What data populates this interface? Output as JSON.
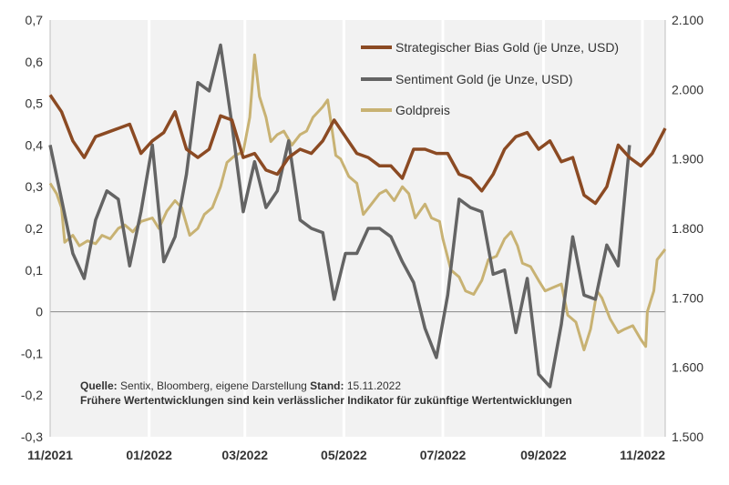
{
  "chart_data": {
    "type": "line",
    "x_ticks": [
      "11/2021",
      "01/2022",
      "03/2022",
      "05/2022",
      "07/2022",
      "09/2022",
      "11/2022"
    ],
    "x_range": [
      "2021-11-01",
      "2022-11-15"
    ],
    "y_left": {
      "range": [
        -0.3,
        0.7
      ],
      "ticks": [
        "0,7",
        "0,6",
        "0,5",
        "0,4",
        "0,3",
        "0,2",
        "0,1",
        "0",
        "-0,1",
        "-0,2",
        "-0,3"
      ]
    },
    "y_right": {
      "range": [
        1500,
        2100
      ],
      "ticks": [
        "2.100",
        "2.000",
        "1.900",
        "1.800",
        "1.700",
        "1.600",
        "1.500"
      ]
    },
    "grid": false,
    "legend_position": "top-right",
    "series": [
      {
        "name": "Strategischer Bias Gold (je Unze, USD)",
        "axis": "left",
        "color": "#8B4A23",
        "points": [
          [
            "2021-11-01",
            0.52
          ],
          [
            "2021-11-08",
            0.48
          ],
          [
            "2021-11-15",
            0.41
          ],
          [
            "2021-11-22",
            0.37
          ],
          [
            "2021-11-29",
            0.42
          ],
          [
            "2021-12-06",
            0.43
          ],
          [
            "2021-12-13",
            0.44
          ],
          [
            "2021-12-20",
            0.45
          ],
          [
            "2021-12-27",
            0.38
          ],
          [
            "2022-01-03",
            0.41
          ],
          [
            "2022-01-10",
            0.43
          ],
          [
            "2022-01-17",
            0.48
          ],
          [
            "2022-01-24",
            0.39
          ],
          [
            "2022-01-31",
            0.37
          ],
          [
            "2022-02-07",
            0.39
          ],
          [
            "2022-02-14",
            0.47
          ],
          [
            "2022-02-21",
            0.46
          ],
          [
            "2022-02-28",
            0.37
          ],
          [
            "2022-03-07",
            0.38
          ],
          [
            "2022-03-14",
            0.34
          ],
          [
            "2022-03-21",
            0.33
          ],
          [
            "2022-03-28",
            0.37
          ],
          [
            "2022-04-04",
            0.39
          ],
          [
            "2022-04-11",
            0.38
          ],
          [
            "2022-04-18",
            0.41
          ],
          [
            "2022-04-25",
            0.46
          ],
          [
            "2022-05-02",
            0.42
          ],
          [
            "2022-05-09",
            0.38
          ],
          [
            "2022-05-16",
            0.37
          ],
          [
            "2022-05-23",
            0.35
          ],
          [
            "2022-05-30",
            0.35
          ],
          [
            "2022-06-06",
            0.32
          ],
          [
            "2022-06-13",
            0.39
          ],
          [
            "2022-06-20",
            0.39
          ],
          [
            "2022-06-27",
            0.38
          ],
          [
            "2022-07-04",
            0.38
          ],
          [
            "2022-07-11",
            0.33
          ],
          [
            "2022-07-18",
            0.32
          ],
          [
            "2022-07-25",
            0.29
          ],
          [
            "2022-08-01",
            0.33
          ],
          [
            "2022-08-08",
            0.39
          ],
          [
            "2022-08-15",
            0.42
          ],
          [
            "2022-08-22",
            0.43
          ],
          [
            "2022-08-29",
            0.39
          ],
          [
            "2022-09-05",
            0.41
          ],
          [
            "2022-09-12",
            0.36
          ],
          [
            "2022-09-19",
            0.37
          ],
          [
            "2022-09-26",
            0.28
          ],
          [
            "2022-10-03",
            0.26
          ],
          [
            "2022-10-10",
            0.3
          ],
          [
            "2022-10-17",
            0.4
          ],
          [
            "2022-10-24",
            0.37
          ],
          [
            "2022-10-31",
            0.35
          ],
          [
            "2022-11-07",
            0.38
          ],
          [
            "2022-11-15",
            0.44
          ]
        ]
      },
      {
        "name": "Sentiment Gold (je Unze, USD)",
        "axis": "left",
        "color": "#646464",
        "points": [
          [
            "2021-11-01",
            0.4
          ],
          [
            "2021-11-08",
            0.27
          ],
          [
            "2021-11-15",
            0.14
          ],
          [
            "2021-11-22",
            0.08
          ],
          [
            "2021-11-29",
            0.22
          ],
          [
            "2021-12-06",
            0.29
          ],
          [
            "2021-12-13",
            0.27
          ],
          [
            "2021-12-20",
            0.11
          ],
          [
            "2021-12-27",
            0.24
          ],
          [
            "2022-01-03",
            0.4
          ],
          [
            "2022-01-10",
            0.12
          ],
          [
            "2022-01-17",
            0.18
          ],
          [
            "2022-01-24",
            0.33
          ],
          [
            "2022-01-31",
            0.55
          ],
          [
            "2022-02-07",
            0.53
          ],
          [
            "2022-02-14",
            0.64
          ],
          [
            "2022-02-21",
            0.45
          ],
          [
            "2022-02-28",
            0.24
          ],
          [
            "2022-03-07",
            0.36
          ],
          [
            "2022-03-14",
            0.25
          ],
          [
            "2022-03-21",
            0.29
          ],
          [
            "2022-03-28",
            0.41
          ],
          [
            "2022-04-04",
            0.22
          ],
          [
            "2022-04-11",
            0.2
          ],
          [
            "2022-04-18",
            0.19
          ],
          [
            "2022-04-25",
            0.03
          ],
          [
            "2022-05-02",
            0.14
          ],
          [
            "2022-05-09",
            0.14
          ],
          [
            "2022-05-16",
            0.2
          ],
          [
            "2022-05-23",
            0.2
          ],
          [
            "2022-05-30",
            0.18
          ],
          [
            "2022-06-06",
            0.12
          ],
          [
            "2022-06-13",
            0.07
          ],
          [
            "2022-06-20",
            -0.04
          ],
          [
            "2022-06-27",
            -0.11
          ],
          [
            "2022-07-04",
            0.04
          ],
          [
            "2022-07-11",
            0.27
          ],
          [
            "2022-07-18",
            0.25
          ],
          [
            "2022-07-25",
            0.24
          ],
          [
            "2022-08-01",
            0.09
          ],
          [
            "2022-08-08",
            0.1
          ],
          [
            "2022-08-15",
            -0.05
          ],
          [
            "2022-08-22",
            0.08
          ],
          [
            "2022-08-29",
            -0.15
          ],
          [
            "2022-09-05",
            -0.18
          ],
          [
            "2022-09-12",
            -0.03
          ],
          [
            "2022-09-19",
            0.18
          ],
          [
            "2022-09-26",
            0.04
          ],
          [
            "2022-10-03",
            0.03
          ],
          [
            "2022-10-10",
            0.16
          ],
          [
            "2022-10-17",
            0.11
          ],
          [
            "2022-10-24",
            0.4
          ]
        ]
      },
      {
        "name": "Goldpreis",
        "axis": "right",
        "color": "#C8B273",
        "points": [
          [
            "2021-11-01",
            1865
          ],
          [
            "2021-11-05",
            1850
          ],
          [
            "2021-11-08",
            1830
          ],
          [
            "2021-11-10",
            1780
          ],
          [
            "2021-11-15",
            1790
          ],
          [
            "2021-11-19",
            1775
          ],
          [
            "2021-11-24",
            1782
          ],
          [
            "2021-11-29",
            1778
          ],
          [
            "2021-12-03",
            1790
          ],
          [
            "2021-12-08",
            1785
          ],
          [
            "2021-12-13",
            1800
          ],
          [
            "2021-12-17",
            1805
          ],
          [
            "2021-12-22",
            1795
          ],
          [
            "2021-12-27",
            1810
          ],
          [
            "2022-01-03",
            1815
          ],
          [
            "2022-01-07",
            1800
          ],
          [
            "2022-01-12",
            1825
          ],
          [
            "2022-01-17",
            1840
          ],
          [
            "2022-01-21",
            1830
          ],
          [
            "2022-01-26",
            1790
          ],
          [
            "2022-01-31",
            1800
          ],
          [
            "2022-02-04",
            1820
          ],
          [
            "2022-02-09",
            1830
          ],
          [
            "2022-02-14",
            1860
          ],
          [
            "2022-02-18",
            1895
          ],
          [
            "2022-02-23",
            1905
          ],
          [
            "2022-02-28",
            1910
          ],
          [
            "2022-03-04",
            1960
          ],
          [
            "2022-03-07",
            2050
          ],
          [
            "2022-03-10",
            1990
          ],
          [
            "2022-03-14",
            1960
          ],
          [
            "2022-03-17",
            1925
          ],
          [
            "2022-03-21",
            1935
          ],
          [
            "2022-03-25",
            1940
          ],
          [
            "2022-03-30",
            1920
          ],
          [
            "2022-04-04",
            1935
          ],
          [
            "2022-04-08",
            1940
          ],
          [
            "2022-04-12",
            1960
          ],
          [
            "2022-04-18",
            1975
          ],
          [
            "2022-04-21",
            1985
          ],
          [
            "2022-04-26",
            1905
          ],
          [
            "2022-04-29",
            1900
          ],
          [
            "2022-05-04",
            1875
          ],
          [
            "2022-05-09",
            1865
          ],
          [
            "2022-05-13",
            1820
          ],
          [
            "2022-05-18",
            1835
          ],
          [
            "2022-05-23",
            1850
          ],
          [
            "2022-05-27",
            1855
          ],
          [
            "2022-06-01",
            1840
          ],
          [
            "2022-06-06",
            1860
          ],
          [
            "2022-06-10",
            1850
          ],
          [
            "2022-06-14",
            1815
          ],
          [
            "2022-06-20",
            1835
          ],
          [
            "2022-06-24",
            1815
          ],
          [
            "2022-06-29",
            1810
          ],
          [
            "2022-07-01",
            1785
          ],
          [
            "2022-07-06",
            1740
          ],
          [
            "2022-07-11",
            1730
          ],
          [
            "2022-07-15",
            1710
          ],
          [
            "2022-07-20",
            1705
          ],
          [
            "2022-07-25",
            1725
          ],
          [
            "2022-07-29",
            1755
          ],
          [
            "2022-08-03",
            1760
          ],
          [
            "2022-08-08",
            1785
          ],
          [
            "2022-08-12",
            1795
          ],
          [
            "2022-08-16",
            1775
          ],
          [
            "2022-08-19",
            1750
          ],
          [
            "2022-08-24",
            1745
          ],
          [
            "2022-08-29",
            1725
          ],
          [
            "2022-09-02",
            1710
          ],
          [
            "2022-09-07",
            1715
          ],
          [
            "2022-09-12",
            1720
          ],
          [
            "2022-09-16",
            1675
          ],
          [
            "2022-09-21",
            1665
          ],
          [
            "2022-09-26",
            1625
          ],
          [
            "2022-09-30",
            1655
          ],
          [
            "2022-10-04",
            1710
          ],
          [
            "2022-10-07",
            1700
          ],
          [
            "2022-10-12",
            1670
          ],
          [
            "2022-10-17",
            1650
          ],
          [
            "2022-10-21",
            1655
          ],
          [
            "2022-10-26",
            1660
          ],
          [
            "2022-10-31",
            1640
          ],
          [
            "2022-11-03",
            1630
          ],
          [
            "2022-11-04",
            1680
          ],
          [
            "2022-11-08",
            1710
          ],
          [
            "2022-11-10",
            1755
          ],
          [
            "2022-11-15",
            1770
          ]
        ]
      }
    ]
  },
  "footnote": {
    "source_label": "Quelle:",
    "source_text": " Sentix, Bloomberg, eigene Darstellung ",
    "date_label": "Stand:",
    "date_text": " 15.11.2022",
    "disclaimer": "Frühere Wertentwicklungen sind kein verlässlicher Indikator für zukünftige Wertentwicklungen"
  }
}
